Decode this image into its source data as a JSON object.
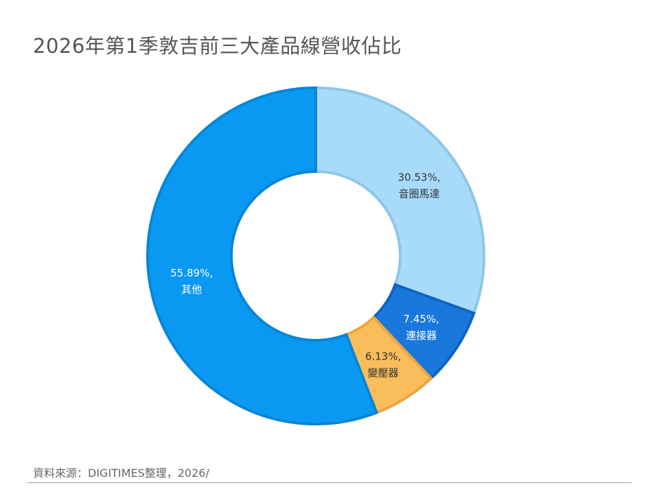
{
  "title": "2026年第1季敦吉前三大產品線營收佔比",
  "source": "資料來源：DIGITIMES整理，2026/",
  "chart_data": {
    "type": "pie",
    "donut": true,
    "slices": [
      {
        "value": 30.53,
        "pct_label": "30.53%,",
        "name": "音圈馬達",
        "color": "#a8dbf9",
        "stroke": "#8ec6e8",
        "text_color": "#333333"
      },
      {
        "value": 7.45,
        "pct_label": "7.45%,",
        "name": "連接器",
        "color": "#1a78dc",
        "stroke": "#0f63bf",
        "text_color": "#ffffff"
      },
      {
        "value": 6.13,
        "pct_label": "6.13%,",
        "name": "變壓器",
        "color": "#f9bd5b",
        "stroke": "#eba63f",
        "text_color": "#333333"
      },
      {
        "value": 55.89,
        "pct_label": "55.89%,",
        "name": "其他",
        "color": "#0a99f2",
        "stroke": "#0886d6",
        "text_color": "#ffffff"
      }
    ]
  }
}
